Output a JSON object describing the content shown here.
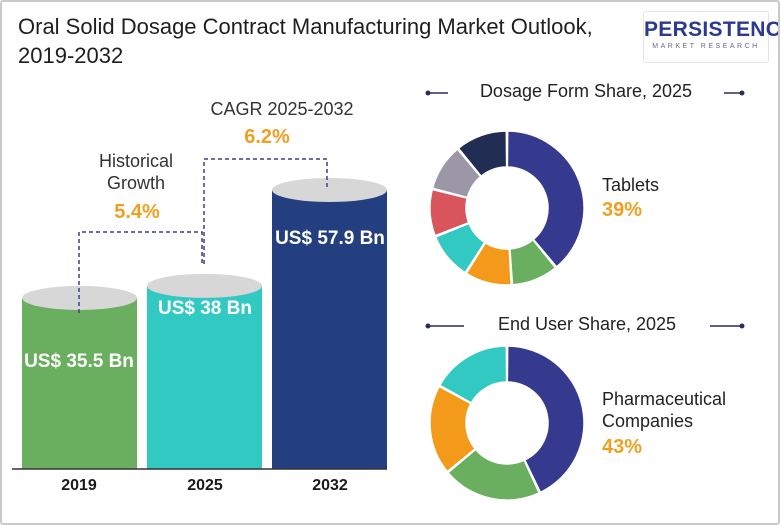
{
  "header": {
    "title": "Oral Solid Dosage Contract Manufacturing Market Outlook, 2019-2032",
    "logo_main": "PERSISTENCE",
    "logo_sub": "MARKET RESEARCH"
  },
  "annotations": {
    "historical_title": "Historical Growth",
    "historical_value": "5.4%",
    "cagr_title": "CAGR 2025-2032",
    "cagr_value": "6.2%"
  },
  "panels": {
    "dosage_title": "Dosage Form Share, 2025",
    "dosage_label": "Tablets",
    "dosage_pct": "39%",
    "enduser_title": "End User Share, 2025",
    "enduser_label": "Pharmaceutical Companies",
    "enduser_pct": "43%"
  },
  "colors": {
    "green": "#6aaf5f",
    "teal": "#33c9c3",
    "navy": "#233f7f",
    "accent": "#f0a020"
  },
  "chart_data": [
    {
      "type": "bar",
      "title": "",
      "categories": [
        "2019",
        "2025",
        "2032"
      ],
      "values": [
        35.5,
        38,
        57.9
      ],
      "value_labels": [
        "US$ 35.5 Bn",
        "US$ 38 Bn",
        "US$ 57.9 Bn"
      ],
      "colors": [
        "#6aaf5f",
        "#33c9c3",
        "#233f7f"
      ]
    },
    {
      "type": "pie",
      "title": "Dosage Form Share, 2025",
      "labels": [
        "Tablets",
        "",
        "",
        "",
        "",
        "",
        ""
      ],
      "values": [
        39,
        10,
        10,
        10,
        10,
        10,
        11
      ],
      "colors": [
        "#363a8f",
        "#6aaf5f",
        "#f39a1b",
        "#33c9c3",
        "#d9555c",
        "#9c97a7",
        "#212d53"
      ]
    },
    {
      "type": "pie",
      "title": "End User Share, 2025",
      "labels": [
        "Pharmaceutical Companies",
        "",
        "",
        ""
      ],
      "values": [
        43,
        21,
        19,
        17
      ],
      "colors": [
        "#363a8f",
        "#6aaf5f",
        "#f39a1b",
        "#33c9c3"
      ]
    }
  ]
}
